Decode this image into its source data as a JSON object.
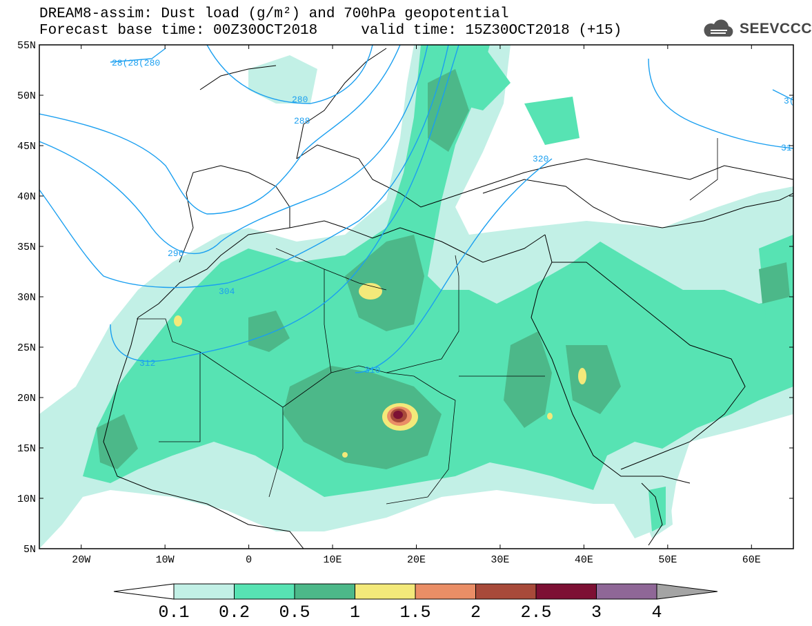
{
  "title": {
    "line1": "DREAM8-assim: Dust load (g/m²) and 700hPa geopotential",
    "line2": "Forecast base time: 00Z30OCT2018     valid time: 15Z30OCT2018 (+15)"
  },
  "logo": {
    "text": "SEEVCCC",
    "icon": "cloud-icon"
  },
  "map": {
    "lon_range": [
      -25,
      65
    ],
    "lat_range": [
      5,
      55
    ],
    "lat_labels": [
      "55N",
      "50N",
      "45N",
      "40N",
      "35N",
      "30N",
      "25N",
      "20N",
      "15N",
      "10N",
      "5N"
    ],
    "lon_labels": [
      "20W",
      "10W",
      "0",
      "10E",
      "20E",
      "30E",
      "40E",
      "50E",
      "60E"
    ],
    "colors": {
      "land_bg": "#ffffff",
      "contour": "#1a9ff0",
      "coast": "#000000"
    }
  },
  "contours": {
    "labels": [
      "28(28(280",
      "280",
      "288",
      "296",
      "304",
      "312",
      "310",
      "320",
      "31",
      "3("
    ]
  },
  "colorbar": {
    "ticks": [
      "0.1",
      "0.2",
      "0.5",
      "1",
      "1.5",
      "2",
      "2.5",
      "3",
      "4"
    ],
    "colors": [
      "#c2f0e6",
      "#57e3b3",
      "#4cb889",
      "#f3e97a",
      "#ea8e66",
      "#a84a3a",
      "#7d1034",
      "#8f6797",
      "#a4a4a4"
    ]
  },
  "chart_data": {
    "type": "heatmap",
    "title": "DREAM8-assim: Dust load (g/m²) and 700hPa geopotential",
    "x_range": [
      -25,
      65
    ],
    "y_range": [
      5,
      55
    ],
    "levels": [
      0.1,
      0.2,
      0.5,
      1,
      1.5,
      2,
      2.5,
      3,
      4
    ],
    "contour_values": [
      280,
      288,
      296,
      304,
      312,
      320
    ],
    "maxima": [
      {
        "lon": 18,
        "lat": 18.5,
        "value": 3
      },
      {
        "lon": 15,
        "lat": 30.5,
        "value": 1
      },
      {
        "lon": -8,
        "lat": 27.5,
        "value": 1
      },
      {
        "lon": 40,
        "lat": 22,
        "value": 1
      },
      {
        "lon": 36,
        "lat": 17,
        "value": 1
      },
      {
        "lon": 11,
        "lat": 14,
        "value": 1
      }
    ]
  }
}
